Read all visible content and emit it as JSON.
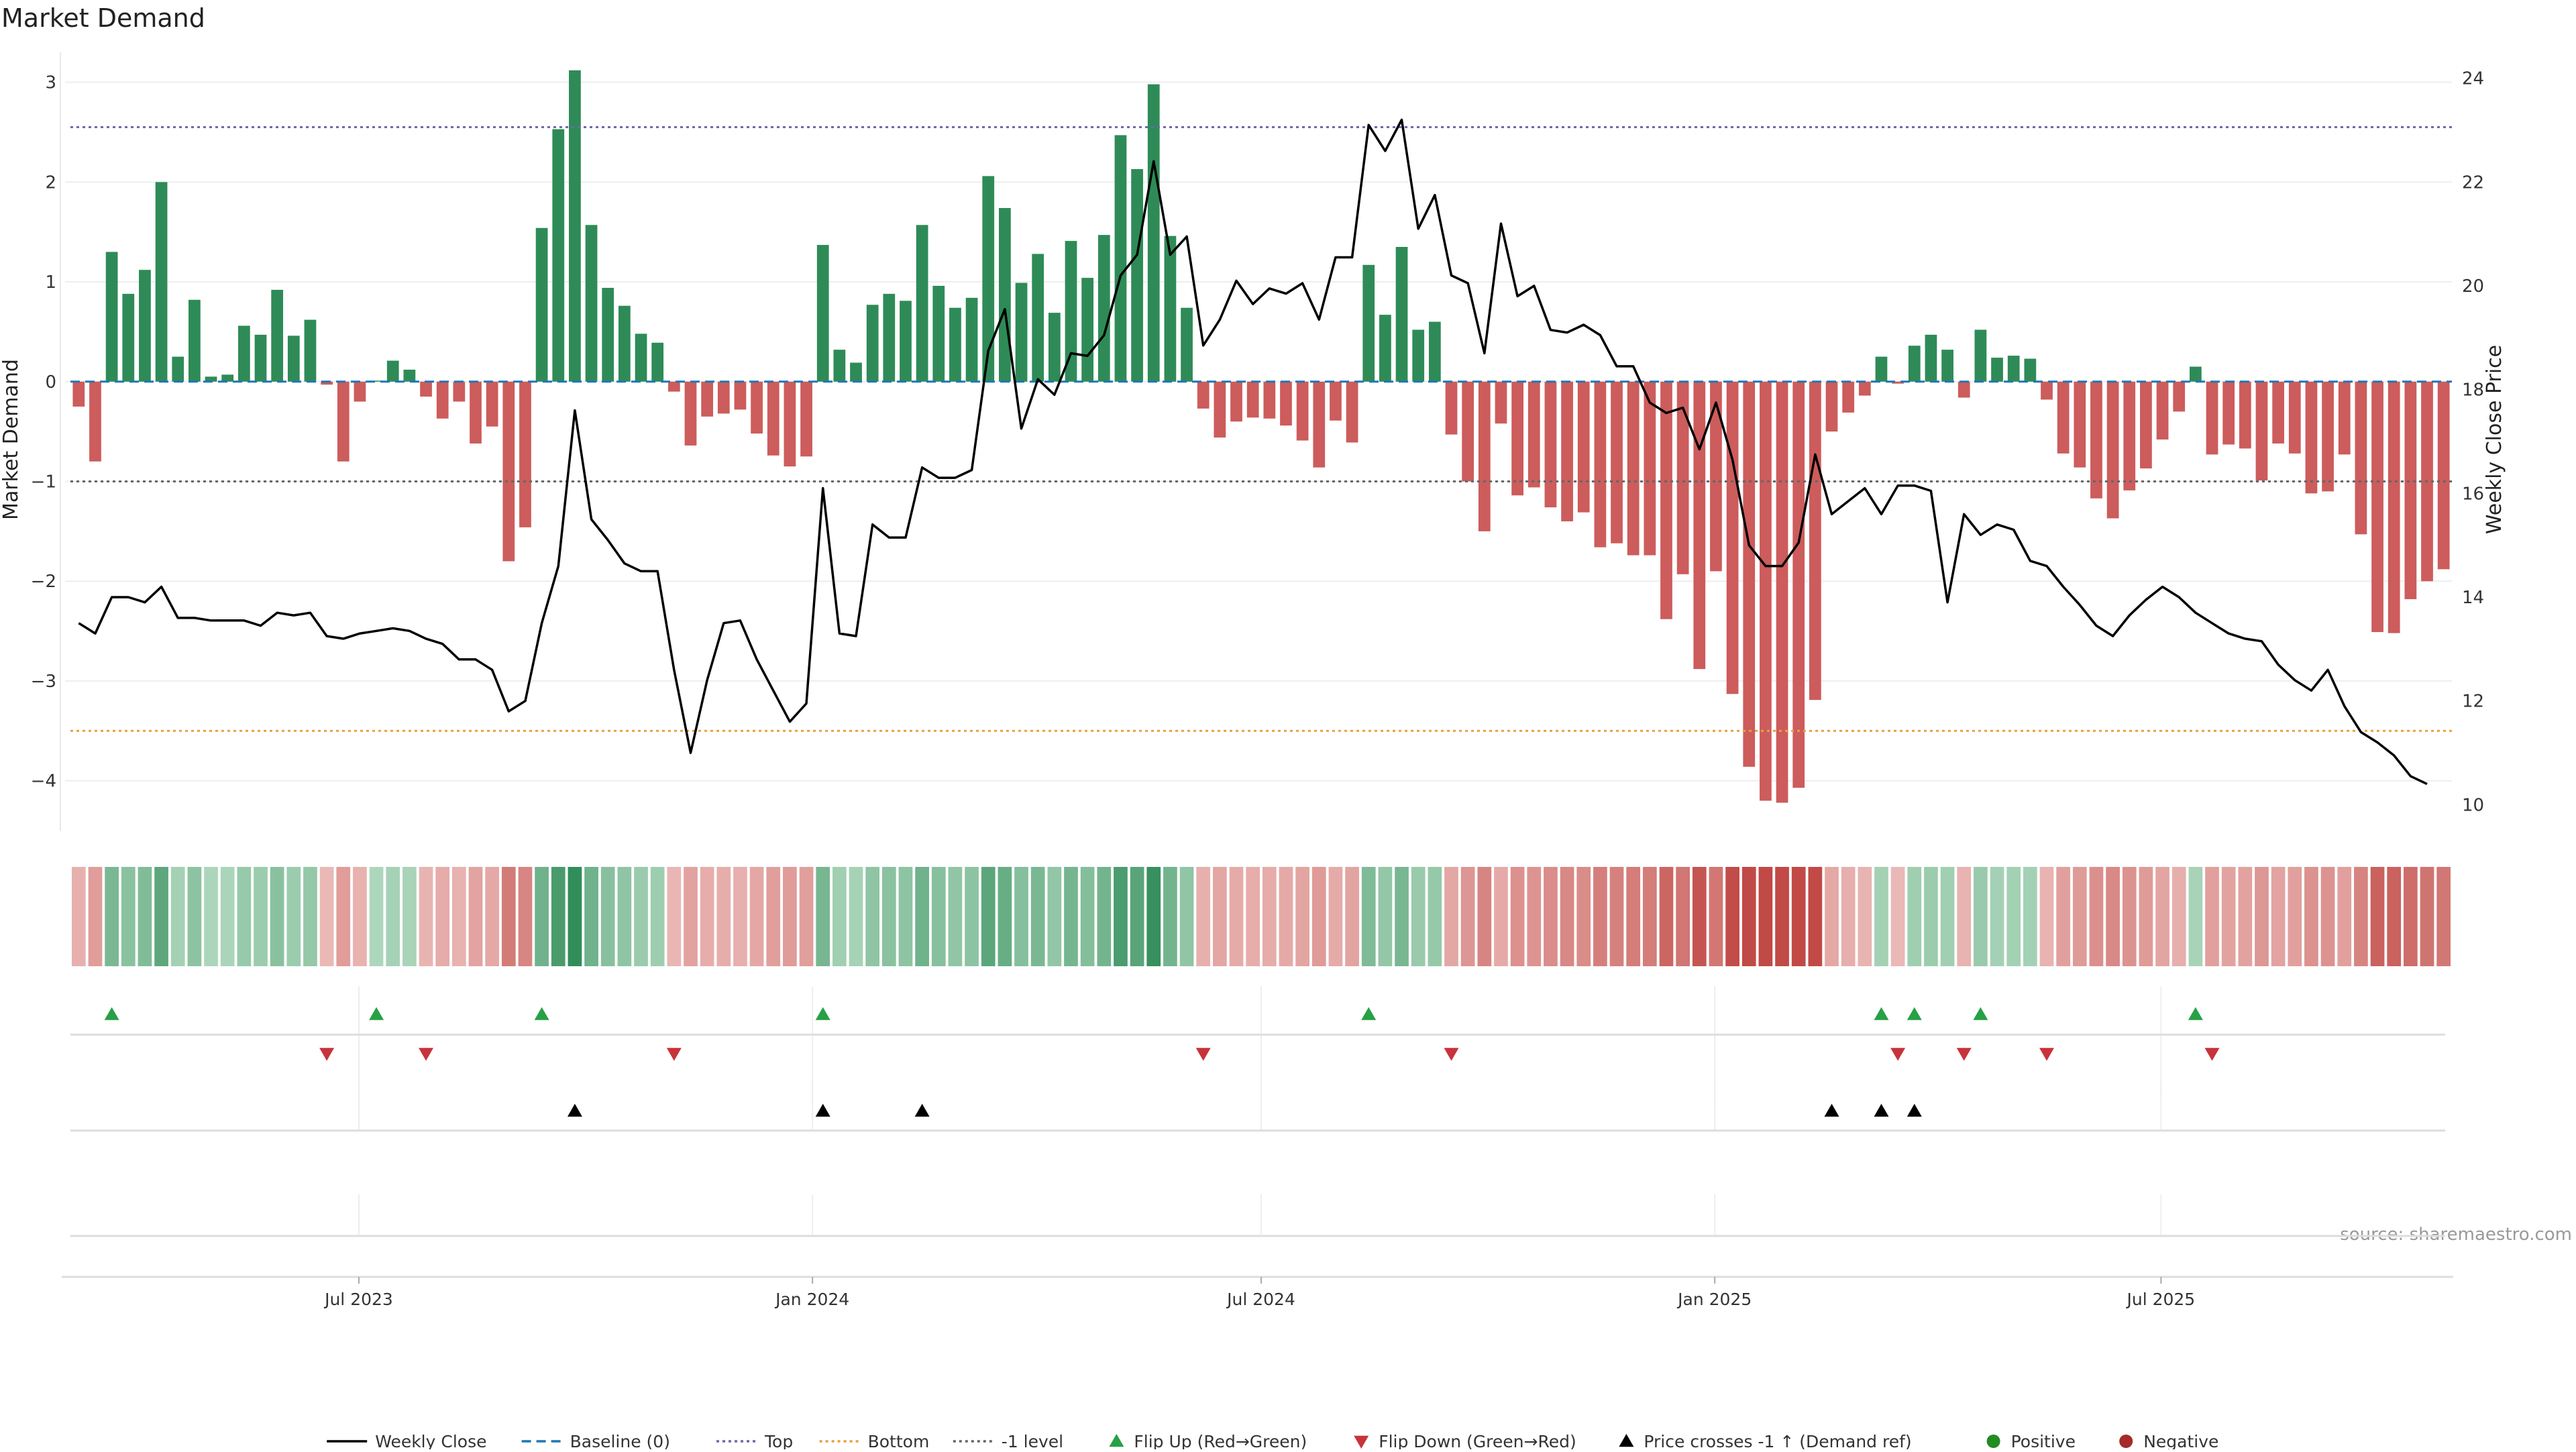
{
  "chart_data": {
    "type": "bar",
    "title": "Market Demand",
    "ylabel": "Market Demand",
    "y2label": "Weekly Close Price",
    "ylim": [
      -4.5,
      3.3
    ],
    "y2lim": [
      9.5,
      24.5
    ],
    "yticks": [
      3,
      2,
      1,
      0,
      -1,
      -2,
      -3,
      -4
    ],
    "ytick_labels": [
      "3",
      "2",
      "1",
      "0",
      "−1",
      "−2",
      "−3",
      "−4"
    ],
    "y2ticks": [
      24,
      22,
      20,
      18,
      16,
      14,
      12,
      10
    ],
    "y2tick_labels": [
      "24",
      "22",
      "20",
      "18",
      "16",
      "14",
      "12",
      "10"
    ],
    "x_range": [
      "2023-03-06",
      "2025-10-27"
    ],
    "xticks": [
      "2023-07-01",
      "2024-01-01",
      "2024-07-01",
      "2025-01-01",
      "2025-07-01"
    ],
    "xtick_labels": [
      "Jul 2023",
      "Jan 2024",
      "Jul 2024",
      "Jan 2025",
      "Jul 2025"
    ],
    "ref_lines": {
      "top": 2.55,
      "bottom": -3.5,
      "minus_one": -1.0,
      "baseline": 0
    },
    "colors": {
      "positive": "#2e8b57",
      "negative": "#cd5c5c",
      "price": "#000000",
      "baseline": "#1f77b4",
      "top": "#6a6aaa",
      "bottom": "#e8a040",
      "minus_one": "#666666",
      "flip_up": "#27a046",
      "flip_down": "#c8333a",
      "cross": "#000000",
      "positive_dot": "#228b22",
      "negative_dot": "#a52a2a"
    },
    "start_date": "2023-03-06",
    "week_days": 7,
    "demand": [
      -0.25,
      -0.8,
      1.3,
      0.88,
      1.12,
      2.0,
      0.25,
      0.82,
      0.05,
      0.07,
      0.56,
      0.47,
      0.92,
      0.46,
      0.62,
      -0.03,
      -0.8,
      -0.2,
      0.01,
      0.21,
      0.12,
      -0.15,
      -0.37,
      -0.2,
      -0.62,
      -0.45,
      -1.8,
      -1.46,
      1.54,
      2.53,
      3.12,
      1.57,
      0.94,
      0.76,
      0.48,
      0.39,
      -0.1,
      -0.64,
      -0.35,
      -0.32,
      -0.28,
      -0.52,
      -0.74,
      -0.85,
      -0.75,
      1.37,
      0.32,
      0.19,
      0.77,
      0.88,
      0.81,
      1.57,
      0.96,
      0.74,
      0.84,
      2.06,
      1.74,
      0.99,
      1.28,
      0.69,
      1.41,
      1.04,
      1.47,
      2.47,
      2.13,
      2.98,
      1.46,
      0.74,
      -0.27,
      -0.56,
      -0.4,
      -0.36,
      -0.37,
      -0.44,
      -0.59,
      -0.86,
      -0.39,
      -0.61,
      1.17,
      0.67,
      1.35,
      0.52,
      0.6,
      -0.53,
      -1.0,
      -1.5,
      -0.42,
      -1.14,
      -1.06,
      -1.26,
      -1.4,
      -1.31,
      -1.66,
      -1.62,
      -1.74,
      -1.74,
      -2.38,
      -1.93,
      -2.88,
      -1.9,
      -3.13,
      -3.86,
      -4.2,
      -4.22,
      -4.07,
      -3.19,
      -0.5,
      -0.31,
      -0.14,
      0.25,
      -0.02,
      0.36,
      0.47,
      0.32,
      -0.16,
      0.52,
      0.24,
      0.26,
      0.23,
      -0.18,
      -0.72,
      -0.86,
      -1.17,
      -1.37,
      -1.09,
      -0.87,
      -0.58,
      -0.3,
      0.15,
      -0.73,
      -0.63,
      -0.67,
      -0.99,
      -0.62,
      -0.72,
      -1.12,
      -1.1,
      -0.73,
      -1.53,
      -2.51,
      -2.52,
      -2.18,
      -2.0,
      -1.88
    ],
    "price": [
      13.5,
      13.3,
      14.0,
      14.0,
      13.9,
      14.2,
      13.6,
      13.6,
      13.55,
      13.55,
      13.55,
      13.45,
      13.7,
      13.65,
      13.7,
      13.25,
      13.2,
      13.3,
      13.35,
      13.4,
      13.35,
      13.2,
      13.1,
      12.8,
      12.8,
      12.6,
      11.8,
      12.0,
      13.5,
      14.6,
      17.6,
      15.5,
      15.1,
      14.65,
      14.5,
      14.5,
      12.6,
      11.0,
      12.4,
      13.5,
      13.55,
      12.8,
      12.2,
      11.6,
      11.95,
      16.1,
      13.3,
      13.25,
      15.4,
      15.15,
      15.15,
      16.5,
      16.3,
      16.3,
      16.45,
      18.75,
      19.55,
      17.25,
      18.2,
      17.9,
      18.7,
      18.65,
      19.05,
      20.2,
      20.6,
      22.4,
      20.6,
      20.95,
      18.85,
      19.35,
      20.1,
      19.65,
      19.95,
      19.85,
      20.05,
      19.35,
      20.55,
      20.55,
      23.1,
      22.6,
      23.2,
      21.1,
      21.75,
      20.2,
      20.05,
      18.7,
      21.2,
      19.8,
      20.0,
      19.15,
      19.1,
      19.25,
      19.05,
      18.45,
      18.45,
      17.75,
      17.55,
      17.65,
      16.85,
      17.75,
      16.65,
      15.0,
      14.6,
      14.6,
      15.05,
      16.75,
      15.6,
      15.85,
      16.1,
      15.6,
      16.15,
      16.15,
      16.05,
      13.9,
      15.6,
      15.2,
      15.4,
      15.3,
      14.7,
      14.6,
      14.2,
      13.85,
      13.45,
      13.25,
      13.65,
      13.95,
      14.2,
      14.0,
      13.7,
      13.5,
      13.3,
      13.2,
      13.15,
      12.7,
      12.4,
      12.2,
      12.6,
      11.9,
      11.4,
      11.2,
      10.95,
      10.55,
      10.4
    ],
    "flip_up_idx": [
      2,
      18,
      28,
      45,
      78,
      109,
      111,
      115,
      128
    ],
    "flip_down_idx": [
      15,
      21,
      36,
      68,
      83,
      110,
      114,
      119,
      129
    ],
    "cross_idx": [
      30,
      45,
      51,
      106,
      109,
      111
    ],
    "source": "source: sharemaestro.com",
    "legend": [
      {
        "label": "Weekly Close",
        "kind": "line-solid"
      },
      {
        "label": "Baseline (0)",
        "kind": "line-dash-blue"
      },
      {
        "label": "Top",
        "kind": "line-dot-top"
      },
      {
        "label": "Bottom",
        "kind": "line-dot-bottom"
      },
      {
        "label": "-1 level",
        "kind": "line-dot-minus"
      },
      {
        "label": "Flip Up (Red→Green)",
        "kind": "tri-up-green"
      },
      {
        "label": "Flip Down (Green→Red)",
        "kind": "tri-down-red"
      },
      {
        "label": "Price crosses -1 ↑ (Demand ref)",
        "kind": "tri-up-black"
      },
      {
        "label": "Positive",
        "kind": "dot-green"
      },
      {
        "label": "Negative",
        "kind": "dot-red"
      }
    ]
  }
}
